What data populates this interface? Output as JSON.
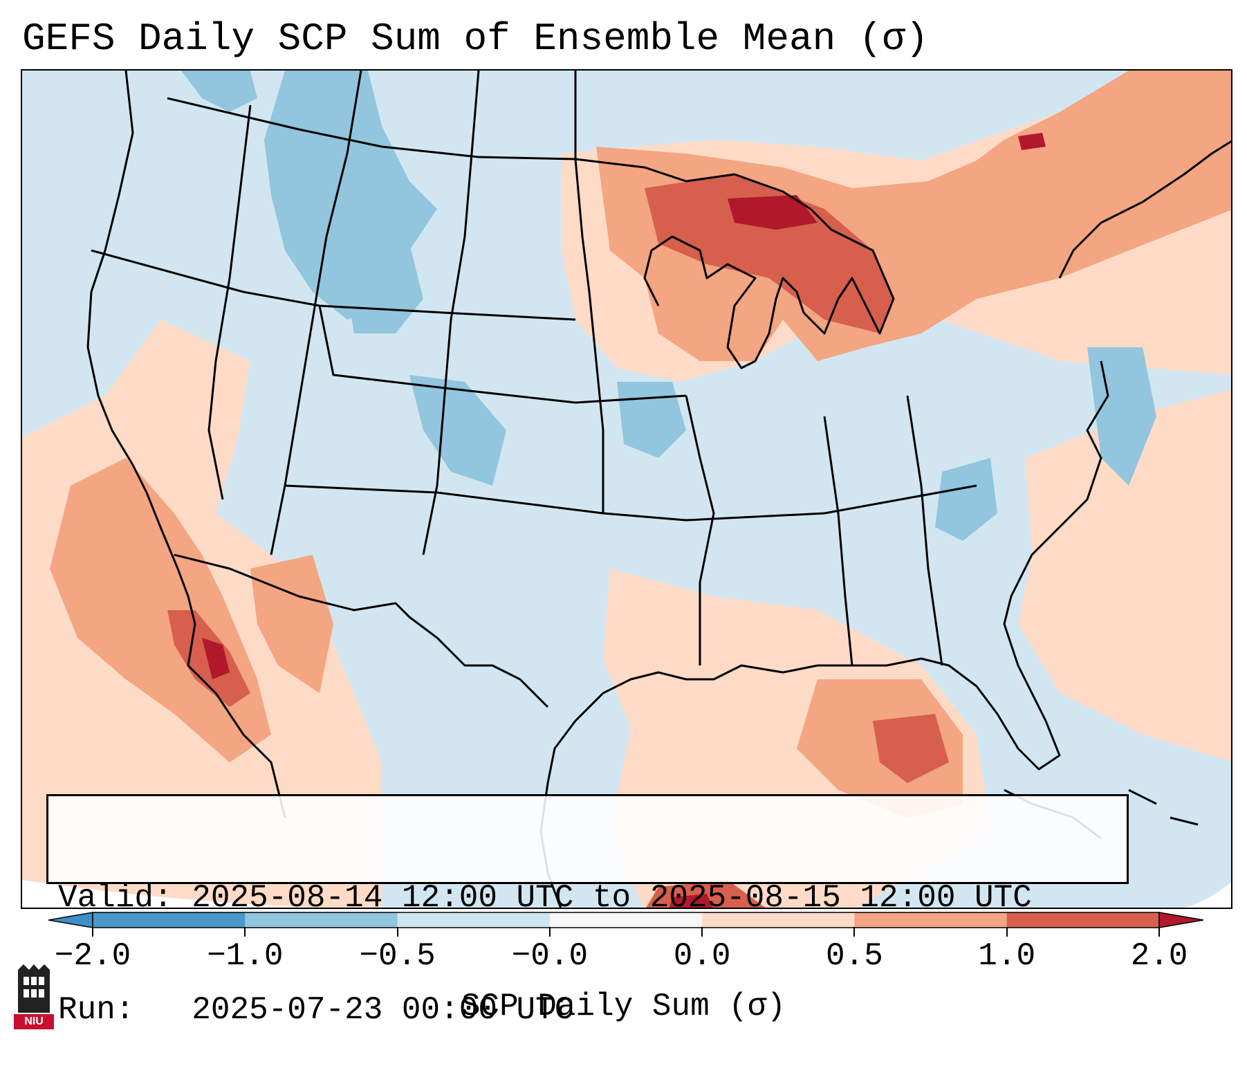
{
  "title": "GEFS Daily SCP Sum of Ensemble Mean (σ)",
  "info": {
    "valid_label": "Valid:",
    "valid_value": "2025-08-14 12:00 UTC to 2025-08-15 12:00 UTC",
    "run_label": "Run:",
    "run_value": "2025-07-23 00:00 UTC"
  },
  "colorbar": {
    "label": "SCP Daily Sum (σ)",
    "tick_labels": [
      "−2.0",
      "−1.0",
      "−0.5",
      "−0.0",
      "0.0",
      "0.5",
      "1.0",
      "2.0"
    ],
    "bins": [
      {
        "name": "below -2.0",
        "color": "#3f8fc6"
      },
      {
        "name": "-2.0 to -1.0",
        "color": "#4a98cb"
      },
      {
        "name": "-1.0 to -0.5",
        "color": "#92c5de"
      },
      {
        "name": "-0.5 to -0.0",
        "color": "#d1e5f0"
      },
      {
        "name": "-0.0 to 0.0",
        "color": "#f7f7f7"
      },
      {
        "name": "0.0 to 0.5",
        "color": "#fddbc7"
      },
      {
        "name": "0.5 to 1.0",
        "color": "#f4a582"
      },
      {
        "name": "1.0 to 2.0",
        "color": "#d6604d"
      },
      {
        "name": "above 2.0",
        "color": "#b2182b"
      }
    ]
  },
  "logo": {
    "text": "NIU"
  }
}
